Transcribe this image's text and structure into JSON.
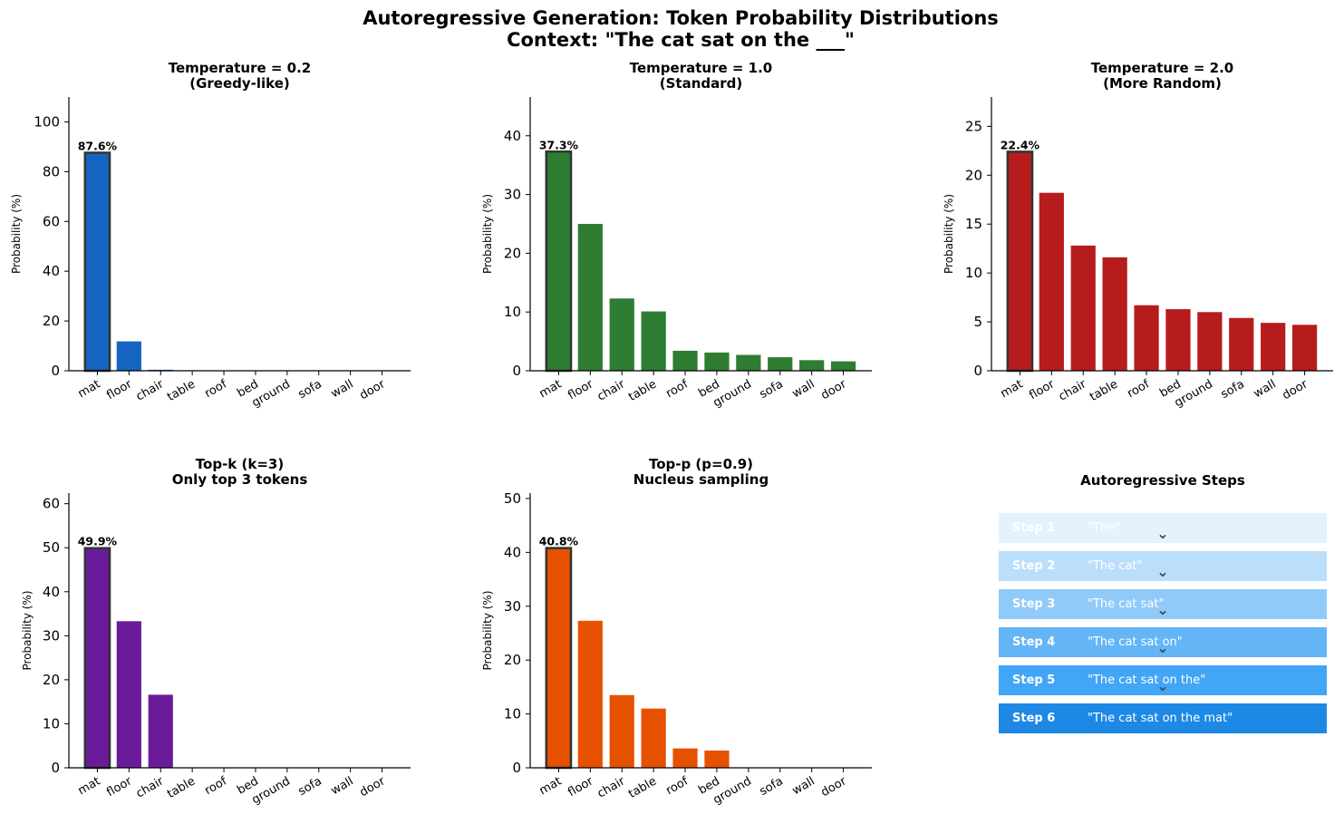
{
  "figure": {
    "title_line1": "Autoregressive Generation: Token Probability Distributions",
    "title_line2": "Context: \"The cat sat on the ___\""
  },
  "chart_data": [
    {
      "type": "bar",
      "title": [
        "Temperature = 0.2",
        "(Greedy-like)"
      ],
      "ylabel": "Probability (%)",
      "categories": [
        "mat",
        "floor",
        "chair",
        "table",
        "roof",
        "bed",
        "ground",
        "sofa",
        "wall",
        "door"
      ],
      "values": [
        87.6,
        11.8,
        0.4,
        0.2,
        0.0,
        0.0,
        0.0,
        0.0,
        0.0,
        0.0
      ],
      "ylim": [
        0,
        110
      ],
      "yticks": [
        0,
        20,
        40,
        60,
        80,
        100
      ],
      "top_label": "87.6%",
      "color": "#1565c0"
    },
    {
      "type": "bar",
      "title": [
        "Temperature = 1.0",
        "(Standard)"
      ],
      "ylabel": "Probability (%)",
      "categories": [
        "mat",
        "floor",
        "chair",
        "table",
        "roof",
        "bed",
        "ground",
        "sofa",
        "wall",
        "door"
      ],
      "values": [
        37.3,
        25.0,
        12.3,
        10.1,
        3.4,
        3.1,
        2.7,
        2.3,
        1.8,
        1.6
      ],
      "ylim": [
        0,
        46.6
      ],
      "yticks": [
        0,
        10,
        20,
        30,
        40
      ],
      "top_label": "37.3%",
      "color": "#2e7d32"
    },
    {
      "type": "bar",
      "title": [
        "Temperature = 2.0",
        "(More Random)"
      ],
      "ylabel": "Probability (%)",
      "categories": [
        "mat",
        "floor",
        "chair",
        "table",
        "roof",
        "bed",
        "ground",
        "sofa",
        "wall",
        "door"
      ],
      "values": [
        22.4,
        18.2,
        12.8,
        11.6,
        6.7,
        6.3,
        6.0,
        5.4,
        4.9,
        4.7
      ],
      "ylim": [
        0,
        28
      ],
      "yticks": [
        0,
        5,
        10,
        15,
        20,
        25
      ],
      "top_label": "22.4%",
      "color": "#b71c1c"
    },
    {
      "type": "bar",
      "title": [
        "Top-k (k=3)",
        "Only top 3 tokens"
      ],
      "ylabel": "Probability (%)",
      "categories": [
        "mat",
        "floor",
        "chair",
        "table",
        "roof",
        "bed",
        "ground",
        "sofa",
        "wall",
        "door"
      ],
      "values": [
        49.9,
        33.3,
        16.6,
        0,
        0,
        0,
        0,
        0,
        0,
        0
      ],
      "ylim": [
        0,
        62.4
      ],
      "yticks": [
        0,
        10,
        20,
        30,
        40,
        50,
        60
      ],
      "top_label": "49.9%",
      "color": "#6a1b9a"
    },
    {
      "type": "bar",
      "title": [
        "Top-p (p=0.9)",
        "Nucleus sampling"
      ],
      "ylabel": "Probability (%)",
      "categories": [
        "mat",
        "floor",
        "chair",
        "table",
        "roof",
        "bed",
        "ground",
        "sofa",
        "wall",
        "door"
      ],
      "values": [
        40.8,
        27.3,
        13.5,
        11.0,
        3.6,
        3.2,
        0,
        0,
        0,
        0
      ],
      "ylim": [
        0,
        51
      ],
      "yticks": [
        0,
        10,
        20,
        30,
        40,
        50
      ],
      "top_label": "40.8%",
      "color": "#e65100"
    }
  ],
  "steps_panel": {
    "title": "Autoregressive Steps",
    "arrow_glyph": "⌄",
    "steps": [
      {
        "label": "Step 1",
        "text": "\"The\"",
        "color": "#e3f2fd"
      },
      {
        "label": "Step 2",
        "text": "\"The cat\"",
        "color": "#bbdefb"
      },
      {
        "label": "Step 3",
        "text": "\"The cat sat\"",
        "color": "#90caf9"
      },
      {
        "label": "Step 4",
        "text": "\"The cat sat on\"",
        "color": "#64b5f6"
      },
      {
        "label": "Step 5",
        "text": "\"The cat sat on the\"",
        "color": "#42a5f5"
      },
      {
        "label": "Step 6",
        "text": "\"The cat sat on the mat\"",
        "color": "#1e88e5"
      }
    ]
  }
}
